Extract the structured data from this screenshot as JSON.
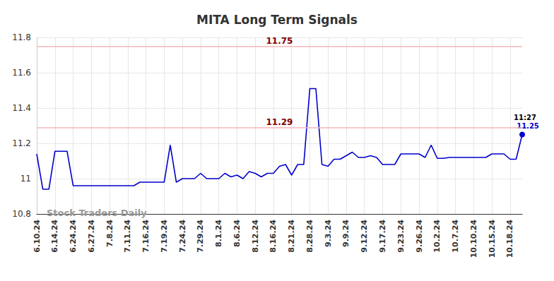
{
  "chart_data": {
    "type": "line",
    "title": "MITA Long Term Signals",
    "categories": [
      "6.10.24",
      null,
      null,
      "6.14.24",
      null,
      null,
      "6.24.24",
      null,
      null,
      "6.27.24",
      null,
      null,
      "7.8.24",
      null,
      null,
      "7.11.24",
      null,
      null,
      "7.16.24",
      null,
      null,
      "7.19.24",
      null,
      null,
      "7.24.24",
      null,
      null,
      "7.29.24",
      null,
      null,
      "8.1.24",
      null,
      null,
      "8.6.24",
      null,
      null,
      "8.12.24",
      null,
      null,
      "8.16.24",
      null,
      null,
      "8.21.24",
      null,
      null,
      "8.28.24",
      null,
      null,
      "9.3.24",
      null,
      null,
      "9.9.24",
      null,
      null,
      "9.12.24",
      null,
      null,
      "9.17.24",
      null,
      null,
      "9.23.24",
      null,
      null,
      "9.26.24",
      null,
      null,
      "10.2.24",
      null,
      null,
      "10.7.24",
      null,
      null,
      "10.10.24",
      null,
      null,
      "10.15.24",
      null,
      null,
      "10.18.24",
      null,
      null
    ],
    "values": [
      11.14,
      10.94,
      10.94,
      11.155,
      11.155,
      11.155,
      10.96,
      10.96,
      10.96,
      10.96,
      10.96,
      10.96,
      10.96,
      10.96,
      10.96,
      10.96,
      10.96,
      10.98,
      10.98,
      10.98,
      10.98,
      10.98,
      11.19,
      10.98,
      11.0,
      11.0,
      11.0,
      11.03,
      11.0,
      11.0,
      11.0,
      11.03,
      11.01,
      11.02,
      11.0,
      11.04,
      11.03,
      11.01,
      11.03,
      11.03,
      11.07,
      11.08,
      11.02,
      11.08,
      11.08,
      11.51,
      11.51,
      11.08,
      11.07,
      11.11,
      11.11,
      11.13,
      11.15,
      11.12,
      11.12,
      11.13,
      11.12,
      11.08,
      11.08,
      11.08,
      11.14,
      11.14,
      11.14,
      11.14,
      11.12,
      11.19,
      11.115,
      11.115,
      11.12,
      11.12,
      11.12,
      11.12,
      11.12,
      11.12,
      11.12,
      11.14,
      11.14,
      11.14,
      11.11,
      11.11,
      11.25
    ],
    "color": "#0000cc",
    "ylim": [
      10.8,
      11.8
    ],
    "yticks": [
      10.8,
      11,
      11.2,
      11.4,
      11.6,
      11.8
    ],
    "grid": true,
    "reference_lines": [
      {
        "value": 11.75,
        "label": "11.75"
      },
      {
        "value": 11.29,
        "label": "11.29"
      }
    ],
    "annotations": [
      "11:27"
    ],
    "watermark": "Stock Traders Daily"
  }
}
